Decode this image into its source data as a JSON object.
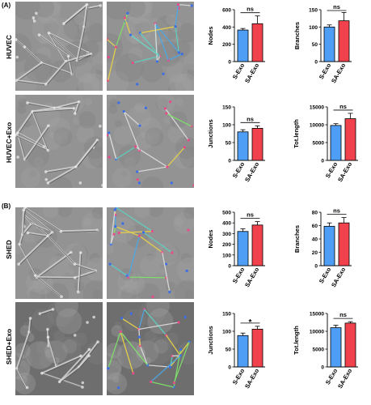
{
  "sections": [
    {
      "label": "(A)",
      "rows": [
        {
          "label": "HUVEC"
        },
        {
          "label": "HUVEC+Exo"
        }
      ]
    },
    {
      "label": "(B)",
      "rows": [
        {
          "label": "SHED"
        },
        {
          "label": "SHED+Exo"
        }
      ]
    }
  ],
  "colors": {
    "s_exo": "#4f9ef5",
    "sa_exo": "#f0414d",
    "micro_dark": "#3a3a3a",
    "micro_light": "#c9c9c9"
  },
  "chart_data": [
    {
      "type": "bar",
      "ylabel": "Nodes",
      "categories": [
        "S-Exo",
        "SA-Exo"
      ],
      "values": [
        365,
        438
      ],
      "errors": [
        18,
        90
      ],
      "ylim": [
        0,
        600
      ],
      "yticks": [
        0,
        200,
        400,
        600
      ],
      "significance": "ns"
    },
    {
      "type": "bar",
      "ylabel": "Branches",
      "categories": [
        "S-Exo",
        "SA-Exo"
      ],
      "values": [
        100,
        118
      ],
      "errors": [
        6,
        24
      ],
      "ylim": [
        0,
        150
      ],
      "yticks": [
        0,
        50,
        100,
        150
      ],
      "significance": "ns"
    },
    {
      "type": "bar",
      "ylabel": "Junctions",
      "categories": [
        "S-Exo",
        "SA-Exo"
      ],
      "values": [
        80,
        90
      ],
      "errors": [
        6,
        7
      ],
      "ylim": [
        0,
        150
      ],
      "yticks": [
        0,
        50,
        100,
        150
      ],
      "significance": "ns"
    },
    {
      "type": "bar",
      "ylabel": "Tot.length",
      "categories": [
        "S-Exo",
        "SA-Exo"
      ],
      "values": [
        9800,
        11700
      ],
      "errors": [
        500,
        1500
      ],
      "ylim": [
        0,
        15000
      ],
      "yticks": [
        0,
        5000,
        10000,
        15000
      ],
      "significance": "ns"
    },
    {
      "type": "bar",
      "ylabel": "Nodes",
      "categories": [
        "S-Exo",
        "SA-Exo"
      ],
      "values": [
        320,
        380
      ],
      "errors": [
        25,
        32
      ],
      "ylim": [
        0,
        500
      ],
      "yticks": [
        0,
        100,
        200,
        300,
        400,
        500
      ],
      "significance": "ns"
    },
    {
      "type": "bar",
      "ylabel": "Branches",
      "categories": [
        "S-Exo",
        "SA-Exo"
      ],
      "values": [
        59,
        64
      ],
      "errors": [
        5,
        8
      ],
      "ylim": [
        0,
        80
      ],
      "yticks": [
        0,
        20,
        40,
        60,
        80
      ],
      "significance": "ns"
    },
    {
      "type": "bar",
      "ylabel": "Junctions",
      "categories": [
        "S-Exo",
        "SA-Exo"
      ],
      "values": [
        88,
        106
      ],
      "errors": [
        7,
        8
      ],
      "ylim": [
        0,
        150
      ],
      "yticks": [
        0,
        50,
        100,
        150
      ],
      "significance": "*"
    },
    {
      "type": "bar",
      "ylabel": "Tot.length",
      "categories": [
        "S-Exo",
        "SA-Exo"
      ],
      "values": [
        11000,
        12300
      ],
      "errors": [
        700,
        400
      ],
      "ylim": [
        0,
        15000
      ],
      "yticks": [
        0,
        5000,
        10000,
        15000
      ],
      "significance": "ns"
    }
  ]
}
